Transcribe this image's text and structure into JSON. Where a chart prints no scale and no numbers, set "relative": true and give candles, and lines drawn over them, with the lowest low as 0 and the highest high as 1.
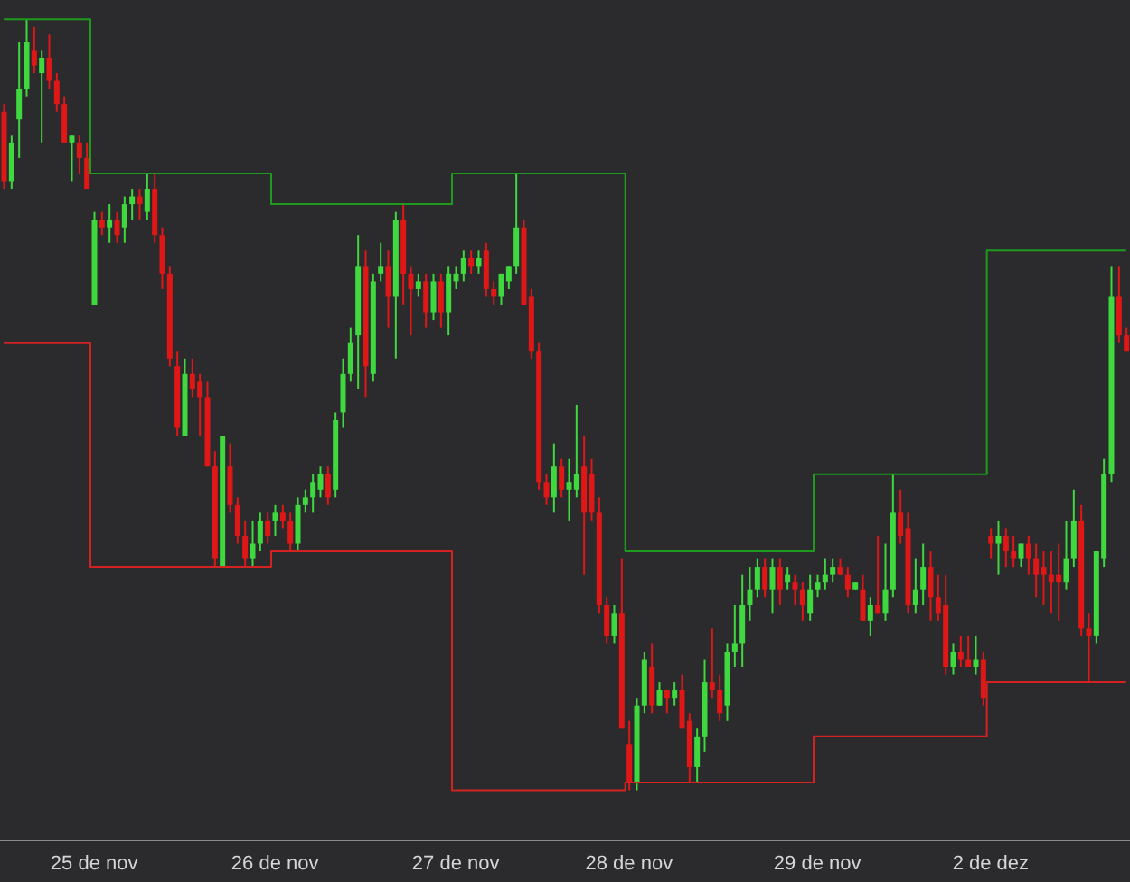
{
  "chart_data": {
    "type": "candlestick",
    "relative": true,
    "categories": [
      null,
      null,
      null,
      null,
      null,
      null,
      null,
      null,
      null,
      null,
      null,
      null,
      "25 de nov",
      null,
      null,
      null,
      null,
      null,
      null,
      null,
      null,
      null,
      null,
      null,
      null,
      null,
      null,
      null,
      null,
      null,
      null,
      null,
      null,
      null,
      null,
      null,
      "26 de nov",
      null,
      null,
      null,
      null,
      null,
      null,
      null,
      null,
      null,
      null,
      null,
      null,
      null,
      null,
      null,
      null,
      null,
      null,
      null,
      null,
      null,
      null,
      null,
      "27 de nov",
      null,
      null,
      null,
      null,
      null,
      null,
      null,
      null,
      null,
      null,
      null,
      null,
      null,
      null,
      null,
      null,
      null,
      null,
      null,
      null,
      null,
      null,
      "28 de nov",
      null,
      null,
      null,
      null,
      null,
      null,
      null,
      null,
      null,
      null,
      null,
      null,
      null,
      null,
      null,
      null,
      null,
      null,
      null,
      null,
      null,
      null,
      null,
      null,
      "29 de nov",
      null,
      null,
      null,
      null,
      null,
      null,
      null,
      null,
      null,
      null,
      null,
      null,
      null,
      null,
      null,
      null,
      null,
      null,
      null,
      null,
      null,
      null,
      "2 de dez",
      null,
      null,
      null,
      null,
      null,
      null,
      null,
      null,
      null,
      null,
      null,
      null,
      null,
      null,
      null,
      null,
      null,
      null
    ],
    "colors": [
      "#e01717",
      "#3fd83f",
      "#3fd83f",
      "#3fd83f",
      "#e01717",
      "#3fd83f",
      "#e01717",
      "#e01717",
      "#e01717",
      "#3fd83f",
      "#e01717",
      "#e01717",
      "#3fd83f",
      "#e01717",
      "#3fd83f",
      "#e01717",
      "#3fd83f",
      "#3fd83f",
      "#e01717",
      "#3fd83f",
      "#e01717",
      "#e01717",
      "#e01717",
      "#e01717",
      "#3fd83f",
      "#e01717",
      "#e01717",
      "#e01717",
      "#e01717",
      "#3fd83f",
      "#e01717",
      "#e01717",
      "#e01717",
      "#3fd83f",
      "#3fd83f",
      "#e01717",
      "#3fd83f",
      "#e01717",
      "#e01717",
      "#3fd83f",
      "#3fd83f",
      "#3fd83f",
      "#3fd83f",
      "#e01717",
      "#3fd83f",
      "#3fd83f",
      "#3fd83f",
      "#3fd83f",
      "#e01717",
      "#3fd83f",
      "#3fd83f",
      "#e01717",
      "#3fd83f",
      "#e01717",
      "#e01717",
      "#3fd83f",
      "#e01717",
      "#3fd83f",
      "#e01717",
      "#3fd83f",
      "#3fd83f",
      "#3fd83f",
      "#e01717",
      "#3fd83f",
      "#e01717",
      "#e01717",
      "#3fd83f",
      "#3fd83f",
      "#3fd83f",
      "#e01717",
      "#e01717",
      "#e01717",
      "#e01717",
      "#3fd83f",
      "#e01717",
      "#3fd83f",
      "#3fd83f",
      "#e01717",
      "#e01717",
      "#e01717",
      "#e01717",
      "#3fd83f",
      "#e01717",
      "#e01717",
      "#3fd83f",
      "#3fd83f",
      "#e01717",
      "#3fd83f",
      "#e01717",
      "#3fd83f",
      "#e01717",
      "#e01717",
      "#3fd83f",
      "#3fd83f",
      "#e01717",
      "#e01717",
      "#3fd83f",
      "#3fd83f",
      "#3fd83f",
      "#3fd83f",
      "#3fd83f",
      "#e01717",
      "#3fd83f",
      "#e01717",
      "#3fd83f",
      "#e01717",
      "#e01717",
      "#3fd83f",
      "#3fd83f",
      "#3fd83f",
      "#3fd83f",
      "#e01717",
      "#e01717",
      "#3fd83f",
      "#e01717",
      "#3fd83f",
      "#e01717",
      "#3fd83f",
      "#3fd83f",
      "#e01717",
      "#e01717",
      "#3fd83f",
      "#3fd83f",
      "#e01717",
      "#e01717",
      "#e01717",
      "#3fd83f",
      "#e01717",
      "#e01717",
      "#3fd83f",
      "#e01717",
      "#e01717",
      "#3fd83f",
      "#e01717",
      "#e01717",
      "#3fd83f",
      "#e01717",
      "#e01717",
      "#e01717",
      "#e01717",
      "#e01717",
      "#3fd83f",
      "#3fd83f",
      "#e01717",
      "#e01717",
      "#3fd83f",
      "#3fd83f",
      "#3fd83f",
      "#e01717",
      "#e01717"
    ],
    "ohlc": [
      [
        0.88,
        0.89,
        0.78,
        0.79
      ],
      [
        0.79,
        0.85,
        0.78,
        0.84
      ],
      [
        0.87,
        0.97,
        0.82,
        0.91
      ],
      [
        0.91,
        1,
        0.9,
        0.97
      ],
      [
        0.96,
        0.99,
        0.93,
        0.94
      ],
      [
        0.93,
        0.96,
        0.84,
        0.95
      ],
      [
        0.95,
        0.98,
        0.91,
        0.92
      ],
      [
        0.92,
        0.93,
        0.88,
        0.89
      ],
      [
        0.89,
        0.9,
        0.84,
        0.84
      ],
      [
        0.84,
        0.85,
        0.79,
        0.85
      ],
      [
        0.84,
        0.85,
        0.8,
        0.82
      ],
      [
        0.82,
        0.84,
        0.78,
        0.78
      ],
      [
        0.63,
        0.75,
        0.63,
        0.74
      ],
      [
        0.74,
        0.75,
        0.72,
        0.73
      ],
      [
        0.73,
        0.76,
        0.71,
        0.74
      ],
      [
        0.74,
        0.75,
        0.71,
        0.72
      ],
      [
        0.73,
        0.77,
        0.71,
        0.76
      ],
      [
        0.76,
        0.78,
        0.74,
        0.77
      ],
      [
        0.77,
        0.78,
        0.74,
        0.76
      ],
      [
        0.75,
        0.8,
        0.74,
        0.78
      ],
      [
        0.78,
        0.8,
        0.71,
        0.72
      ],
      [
        0.72,
        0.73,
        0.65,
        0.67
      ],
      [
        0.67,
        0.68,
        0.55,
        0.56
      ],
      [
        0.55,
        0.57,
        0.46,
        0.47
      ],
      [
        0.46,
        0.56,
        0.46,
        0.54
      ],
      [
        0.54,
        0.56,
        0.51,
        0.52
      ],
      [
        0.53,
        0.54,
        0.46,
        0.51
      ],
      [
        0.51,
        0.53,
        0.42,
        0.42
      ],
      [
        0.42,
        0.44,
        0.29,
        0.3
      ],
      [
        0.29,
        0.46,
        0.29,
        0.46
      ],
      [
        0.42,
        0.45,
        0.36,
        0.37
      ],
      [
        0.37,
        0.38,
        0.32,
        0.33
      ],
      [
        0.33,
        0.35,
        0.29,
        0.3
      ],
      [
        0.3,
        0.35,
        0.29,
        0.32
      ],
      [
        0.32,
        0.36,
        0.31,
        0.35
      ],
      [
        0.35,
        0.36,
        0.32,
        0.33
      ],
      [
        0.35,
        0.37,
        0.33,
        0.36
      ],
      [
        0.36,
        0.37,
        0.34,
        0.35
      ],
      [
        0.35,
        0.36,
        0.31,
        0.32
      ],
      [
        0.32,
        0.38,
        0.31,
        0.37
      ],
      [
        0.37,
        0.39,
        0.36,
        0.38
      ],
      [
        0.38,
        0.41,
        0.36,
        0.4
      ],
      [
        0.39,
        0.42,
        0.38,
        0.41
      ],
      [
        0.41,
        0.42,
        0.37,
        0.38
      ],
      [
        0.39,
        0.49,
        0.38,
        0.48
      ],
      [
        0.49,
        0.56,
        0.47,
        0.54
      ],
      [
        0.54,
        0.6,
        0.53,
        0.58
      ],
      [
        0.59,
        0.72,
        0.52,
        0.68
      ],
      [
        0.68,
        0.7,
        0.51,
        0.55
      ],
      [
        0.54,
        0.67,
        0.53,
        0.66
      ],
      [
        0.67,
        0.71,
        0.66,
        0.68
      ],
      [
        0.68,
        0.7,
        0.6,
        0.64
      ],
      [
        0.64,
        0.75,
        0.56,
        0.74
      ],
      [
        0.74,
        0.76,
        0.63,
        0.67
      ],
      [
        0.67,
        0.68,
        0.59,
        0.65
      ],
      [
        0.65,
        0.67,
        0.64,
        0.66
      ],
      [
        0.66,
        0.67,
        0.6,
        0.62
      ],
      [
        0.62,
        0.67,
        0.61,
        0.66
      ],
      [
        0.66,
        0.67,
        0.6,
        0.62
      ],
      [
        0.62,
        0.68,
        0.59,
        0.67
      ],
      [
        0.66,
        0.68,
        0.65,
        0.67
      ],
      [
        0.67,
        0.7,
        0.66,
        0.69
      ],
      [
        0.69,
        0.7,
        0.67,
        0.68
      ],
      [
        0.68,
        0.7,
        0.67,
        0.69
      ],
      [
        0.7,
        0.71,
        0.64,
        0.65
      ],
      [
        0.65,
        0.66,
        0.63,
        0.64
      ],
      [
        0.64,
        0.67,
        0.63,
        0.67
      ],
      [
        0.66,
        0.68,
        0.65,
        0.68
      ],
      [
        0.68,
        0.8,
        0.67,
        0.73
      ],
      [
        0.73,
        0.74,
        0.63,
        0.63
      ],
      [
        0.64,
        0.65,
        0.56,
        0.57
      ],
      [
        0.57,
        0.58,
        0.39,
        0.4
      ],
      [
        0.4,
        0.41,
        0.37,
        0.38
      ],
      [
        0.38,
        0.45,
        0.36,
        0.42
      ],
      [
        0.42,
        0.43,
        0.38,
        0.39
      ],
      [
        0.39,
        0.43,
        0.35,
        0.4
      ],
      [
        0.39,
        0.5,
        0.38,
        0.41
      ],
      [
        0.42,
        0.46,
        0.28,
        0.36
      ],
      [
        0.41,
        0.43,
        0.35,
        0.36
      ],
      [
        0.36,
        0.38,
        0.23,
        0.24
      ],
      [
        0.24,
        0.25,
        0.19,
        0.2
      ],
      [
        0.2,
        0.24,
        0.19,
        0.23
      ],
      [
        0.23,
        0.3,
        0.08,
        0.08
      ],
      [
        0.06,
        0.09,
        0,
        0.01
      ],
      [
        0.01,
        0.12,
        0,
        0.11
      ],
      [
        0.11,
        0.18,
        0.1,
        0.17
      ],
      [
        0.16,
        0.19,
        0.1,
        0.11
      ],
      [
        0.11,
        0.14,
        0.11,
        0.13
      ],
      [
        0.13,
        0.13,
        0.1,
        0.12
      ],
      [
        0.12,
        0.14,
        0.11,
        0.13
      ],
      [
        0.13,
        0.15,
        0.08,
        0.08
      ],
      [
        0.09,
        0.1,
        0.01,
        0.03
      ],
      [
        0.03,
        0.08,
        0.01,
        0.07
      ],
      [
        0.07,
        0.17,
        0.05,
        0.14
      ],
      [
        0.14,
        0.21,
        0.12,
        0.13
      ],
      [
        0.13,
        0.15,
        0.09,
        0.1
      ],
      [
        0.11,
        0.19,
        0.09,
        0.18
      ],
      [
        0.18,
        0.24,
        0.16,
        0.19
      ],
      [
        0.19,
        0.28,
        0.16,
        0.24
      ],
      [
        0.24,
        0.29,
        0.22,
        0.26
      ],
      [
        0.26,
        0.3,
        0.25,
        0.29
      ],
      [
        0.29,
        0.3,
        0.25,
        0.26
      ],
      [
        0.26,
        0.3,
        0.23,
        0.29
      ],
      [
        0.29,
        0.3,
        0.24,
        0.26
      ],
      [
        0.27,
        0.29,
        0.26,
        0.28
      ],
      [
        0.27,
        0.28,
        0.24,
        0.26
      ],
      [
        0.26,
        0.27,
        0.22,
        0.24
      ],
      [
        0.23,
        0.28,
        0.22,
        0.26
      ],
      [
        0.26,
        0.28,
        0.25,
        0.27
      ],
      [
        0.27,
        0.3,
        0.26,
        0.28
      ],
      [
        0.28,
        0.3,
        0.27,
        0.29
      ],
      [
        0.29,
        0.3,
        0.28,
        0.28
      ],
      [
        0.28,
        0.29,
        0.25,
        0.26
      ],
      [
        0.26,
        0.27,
        0.26,
        0.27
      ],
      [
        0.26,
        0.28,
        0.22,
        0.22
      ],
      [
        0.22,
        0.25,
        0.2,
        0.24
      ],
      [
        0.24,
        0.33,
        0.23,
        0.23
      ],
      [
        0.23,
        0.32,
        0.22,
        0.26
      ],
      [
        0.26,
        0.41,
        0.25,
        0.36
      ],
      [
        0.36,
        0.39,
        0.32,
        0.33
      ],
      [
        0.34,
        0.36,
        0.23,
        0.24
      ],
      [
        0.24,
        0.3,
        0.23,
        0.26
      ],
      [
        0.26,
        0.32,
        0.24,
        0.29
      ],
      [
        0.29,
        0.31,
        0.22,
        0.25
      ],
      [
        0.25,
        0.28,
        0.22,
        0.23
      ],
      [
        0.24,
        0.28,
        0.15,
        0.16
      ],
      [
        0.16,
        0.19,
        0.15,
        0.18
      ],
      [
        0.18,
        0.2,
        0.16,
        0.17
      ],
      [
        0.17,
        0.2,
        0.16,
        0.16
      ],
      [
        0.16,
        0.2,
        0.15,
        0.17
      ],
      [
        0.17,
        0.18,
        0.11,
        0.12
      ],
      [
        0.33,
        0.34,
        0.3,
        0.32
      ],
      [
        0.32,
        0.35,
        0.28,
        0.33
      ],
      [
        0.33,
        0.34,
        0.29,
        0.31
      ],
      [
        0.31,
        0.33,
        0.29,
        0.3
      ],
      [
        0.3,
        0.32,
        0.29,
        0.32
      ],
      [
        0.32,
        0.33,
        0.28,
        0.3
      ],
      [
        0.3,
        0.32,
        0.25,
        0.28
      ],
      [
        0.29,
        0.31,
        0.24,
        0.28
      ],
      [
        0.28,
        0.31,
        0.23,
        0.27
      ],
      [
        0.28,
        0.32,
        0.22,
        0.27
      ],
      [
        0.27,
        0.35,
        0.26,
        0.3
      ],
      [
        0.3,
        0.39,
        0.29,
        0.35
      ],
      [
        0.35,
        0.37,
        0.2,
        0.21
      ],
      [
        0.21,
        0.23,
        0.14,
        0.2
      ],
      [
        0.2,
        0.31,
        0.19,
        0.31
      ],
      [
        0.3,
        0.43,
        0.29,
        0.41
      ],
      [
        0.41,
        0.68,
        0.4,
        0.64
      ],
      [
        0.64,
        0.68,
        0.58,
        0.59
      ],
      [
        0.59,
        0.6,
        0.57,
        0.57
      ]
    ],
    "series": [
      {
        "type": "step",
        "color": "#1e9a1e",
        "values": [
          1,
          1,
          1,
          1,
          1,
          1,
          1,
          1,
          1,
          1,
          1,
          1,
          0.8,
          0.8,
          0.8,
          0.8,
          0.8,
          0.8,
          0.8,
          0.8,
          0.8,
          0.8,
          0.8,
          0.8,
          0.8,
          0.8,
          0.8,
          0.8,
          0.8,
          0.8,
          0.8,
          0.8,
          0.8,
          0.8,
          0.8,
          0.8,
          0.76,
          0.76,
          0.76,
          0.76,
          0.76,
          0.76,
          0.76,
          0.76,
          0.76,
          0.76,
          0.76,
          0.76,
          0.76,
          0.76,
          0.76,
          0.76,
          0.76,
          0.76,
          0.76,
          0.76,
          0.76,
          0.76,
          0.76,
          0.76,
          0.8,
          0.8,
          0.8,
          0.8,
          0.8,
          0.8,
          0.8,
          0.8,
          0.8,
          0.8,
          0.8,
          0.8,
          0.8,
          0.8,
          0.8,
          0.8,
          0.8,
          0.8,
          0.8,
          0.8,
          0.8,
          0.8,
          0.8,
          0.31,
          0.31,
          0.31,
          0.31,
          0.31,
          0.31,
          0.31,
          0.31,
          0.31,
          0.31,
          0.31,
          0.31,
          0.31,
          0.31,
          0.31,
          0.31,
          0.31,
          0.31,
          0.31,
          0.31,
          0.31,
          0.31,
          0.31,
          0.31,
          0.31,
          0.41,
          0.41,
          0.41,
          0.41,
          0.41,
          0.41,
          0.41,
          0.41,
          0.41,
          0.41,
          0.41,
          0.41,
          0.41,
          0.41,
          0.41,
          0.41,
          0.41,
          0.41,
          0.41,
          0.41,
          0.41,
          0.41,
          0.41,
          0.7,
          0.7,
          0.7,
          0.7,
          0.7,
          0.7,
          0.7,
          0.7,
          0.7,
          0.7,
          0.7,
          0.7,
          0.7,
          0.7,
          0.7,
          0.7,
          0.7,
          0.7,
          0.7
        ]
      },
      {
        "type": "step",
        "color": "#d42222",
        "values": [
          0.58,
          0.58,
          0.58,
          0.58,
          0.58,
          0.58,
          0.58,
          0.58,
          0.58,
          0.58,
          0.58,
          0.58,
          0.29,
          0.29,
          0.29,
          0.29,
          0.29,
          0.29,
          0.29,
          0.29,
          0.29,
          0.29,
          0.29,
          0.29,
          0.29,
          0.29,
          0.29,
          0.29,
          0.29,
          0.29,
          0.29,
          0.29,
          0.29,
          0.29,
          0.29,
          0.29,
          0.31,
          0.31,
          0.31,
          0.31,
          0.31,
          0.31,
          0.31,
          0.31,
          0.31,
          0.31,
          0.31,
          0.31,
          0.31,
          0.31,
          0.31,
          0.31,
          0.31,
          0.31,
          0.31,
          0.31,
          0.31,
          0.31,
          0.31,
          0.31,
          0,
          0,
          0,
          0,
          0,
          0,
          0,
          0,
          0,
          0,
          0,
          0,
          0,
          0,
          0,
          0,
          0,
          0,
          0,
          0,
          0,
          0,
          0,
          0.01,
          0.01,
          0.01,
          0.01,
          0.01,
          0.01,
          0.01,
          0.01,
          0.01,
          0.01,
          0.01,
          0.01,
          0.01,
          0.01,
          0.01,
          0.01,
          0.01,
          0.01,
          0.01,
          0.01,
          0.01,
          0.01,
          0.01,
          0.01,
          0.01,
          0.07,
          0.07,
          0.07,
          0.07,
          0.07,
          0.07,
          0.07,
          0.07,
          0.07,
          0.07,
          0.07,
          0.07,
          0.07,
          0.07,
          0.07,
          0.07,
          0.07,
          0.07,
          0.07,
          0.07,
          0.07,
          0.07,
          0.07,
          0.14,
          0.14,
          0.14,
          0.14,
          0.14,
          0.14,
          0.14,
          0.14,
          0.14,
          0.14,
          0.14,
          0.14,
          0.14,
          0.14,
          0.14,
          0.14,
          0.14,
          0.14,
          0.14
        ]
      }
    ]
  }
}
